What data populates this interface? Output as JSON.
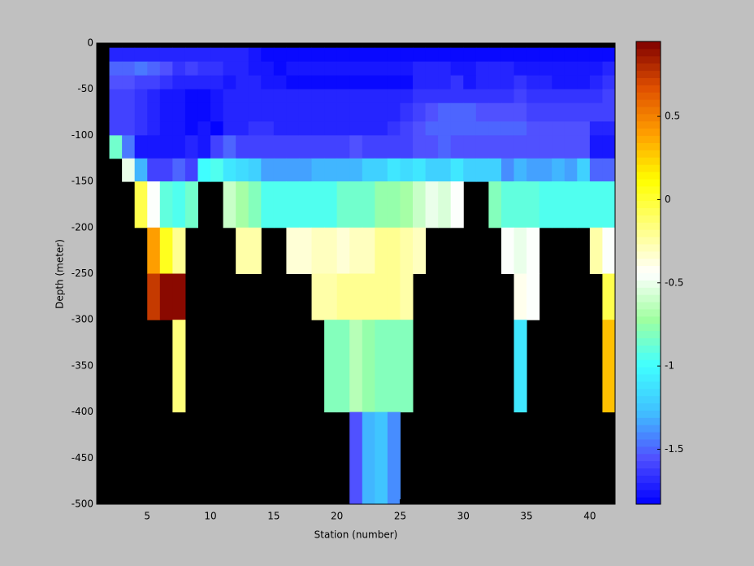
{
  "chart_data": {
    "type": "heatmap",
    "xlabel": "Station (number)",
    "ylabel": "Depth (meter)",
    "xlim": [
      1,
      42
    ],
    "ylim": [
      -500,
      0
    ],
    "xticks": [
      5,
      10,
      15,
      20,
      25,
      30,
      35,
      40
    ],
    "yticks": [
      0,
      -50,
      -100,
      -150,
      -200,
      -250,
      -300,
      -350,
      -400,
      -450,
      -500
    ],
    "xbins": [
      2,
      3,
      4,
      5,
      6,
      7,
      8,
      9,
      10,
      11,
      12,
      13,
      14,
      15,
      16,
      17,
      18,
      19,
      20,
      21,
      22,
      23,
      24,
      25,
      26,
      27,
      28,
      29,
      30,
      31,
      32,
      33,
      34,
      35,
      36,
      37,
      38,
      39,
      40,
      41,
      42
    ],
    "ybins": [
      -5,
      -20,
      -35,
      -50,
      -65,
      -85,
      -100,
      -125,
      -150,
      -200,
      -250,
      -300,
      -400,
      -500
    ],
    "values": [
      [
        -1.7,
        -1.7,
        -1.7,
        -1.7,
        -1.7,
        -1.7,
        -1.7,
        -1.7,
        -1.7,
        -1.7,
        -1.7,
        -1.75,
        -1.8,
        -1.8,
        -1.8,
        -1.8,
        -1.8,
        -1.8,
        -1.8,
        -1.8,
        -1.8,
        -1.8,
        -1.8,
        -1.8,
        -1.8,
        -1.8,
        -1.8,
        -1.8,
        -1.8,
        -1.8,
        -1.8,
        -1.8,
        -1.8,
        -1.8,
        -1.8,
        -1.8,
        -1.8,
        -1.8,
        -1.8,
        -1.8
      ],
      [
        -1.5,
        -1.5,
        -1.45,
        -1.5,
        -1.55,
        -1.65,
        -1.6,
        -1.65,
        -1.65,
        -1.7,
        -1.7,
        -1.75,
        -1.75,
        -1.8,
        -1.75,
        -1.75,
        -1.75,
        -1.75,
        -1.75,
        -1.75,
        -1.75,
        -1.75,
        -1.75,
        -1.75,
        -1.7,
        -1.7,
        -1.7,
        -1.75,
        -1.75,
        -1.7,
        -1.7,
        -1.7,
        -1.75,
        -1.75,
        -1.75,
        -1.75,
        -1.75,
        -1.75,
        -1.75,
        -1.7
      ],
      [
        -1.55,
        -1.55,
        -1.6,
        -1.6,
        -1.65,
        -1.7,
        -1.7,
        -1.7,
        -1.7,
        -1.75,
        -1.7,
        -1.7,
        -1.75,
        -1.75,
        -1.8,
        -1.8,
        -1.8,
        -1.8,
        -1.8,
        -1.8,
        -1.8,
        -1.8,
        -1.8,
        -1.8,
        -1.7,
        -1.7,
        -1.7,
        -1.65,
        -1.75,
        -1.7,
        -1.7,
        -1.7,
        -1.65,
        -1.7,
        -1.7,
        -1.75,
        -1.75,
        -1.75,
        -1.7,
        -1.65
      ],
      [
        -1.6,
        -1.6,
        -1.65,
        -1.7,
        -1.75,
        -1.75,
        -1.8,
        -1.8,
        -1.75,
        -1.7,
        -1.7,
        -1.7,
        -1.7,
        -1.7,
        -1.7,
        -1.7,
        -1.7,
        -1.7,
        -1.7,
        -1.7,
        -1.7,
        -1.7,
        -1.7,
        -1.7,
        -1.65,
        -1.65,
        -1.65,
        -1.65,
        -1.65,
        -1.65,
        -1.65,
        -1.65,
        -1.6,
        -1.65,
        -1.65,
        -1.65,
        -1.65,
        -1.65,
        -1.65,
        -1.6
      ],
      [
        -1.6,
        -1.6,
        -1.65,
        -1.7,
        -1.75,
        -1.75,
        -1.8,
        -1.8,
        -1.75,
        -1.7,
        -1.7,
        -1.7,
        -1.7,
        -1.7,
        -1.7,
        -1.7,
        -1.7,
        -1.7,
        -1.7,
        -1.7,
        -1.7,
        -1.7,
        -1.7,
        -1.65,
        -1.6,
        -1.55,
        -1.5,
        -1.5,
        -1.5,
        -1.55,
        -1.55,
        -1.55,
        -1.55,
        -1.6,
        -1.6,
        -1.6,
        -1.6,
        -1.6,
        -1.6,
        -1.6
      ],
      [
        -1.6,
        -1.6,
        -1.65,
        -1.7,
        -1.75,
        -1.75,
        -1.8,
        -1.75,
        -1.82,
        -1.7,
        -1.7,
        -1.65,
        -1.65,
        -1.7,
        -1.7,
        -1.7,
        -1.7,
        -1.7,
        -1.7,
        -1.7,
        -1.7,
        -1.7,
        -1.65,
        -1.6,
        -1.55,
        -1.5,
        -1.5,
        -1.5,
        -1.5,
        -1.5,
        -1.5,
        -1.5,
        -1.5,
        -1.55,
        -1.55,
        -1.55,
        -1.55,
        -1.55,
        -1.7,
        -1.7
      ],
      [
        -0.85,
        -1.45,
        -1.75,
        -1.75,
        -1.75,
        -1.75,
        -1.7,
        -1.75,
        -1.6,
        -1.5,
        -1.6,
        -1.6,
        -1.6,
        -1.6,
        -1.6,
        -1.6,
        -1.6,
        -1.6,
        -1.6,
        -1.55,
        -1.6,
        -1.6,
        -1.6,
        -1.6,
        -1.55,
        -1.55,
        -1.5,
        -1.55,
        -1.55,
        -1.55,
        -1.55,
        -1.55,
        -1.55,
        -1.55,
        -1.55,
        -1.55,
        -1.55,
        -1.55,
        -1.75,
        -1.75
      ],
      [
        null,
        -0.5,
        -1.3,
        -1.6,
        -1.6,
        -1.5,
        -1.6,
        -1.0,
        -0.95,
        -1.1,
        -1.15,
        -1.2,
        -1.35,
        -1.35,
        -1.35,
        -1.35,
        -1.3,
        -1.3,
        -1.3,
        -1.3,
        -1.2,
        -1.2,
        -1.1,
        -1.15,
        -1.1,
        -1.2,
        -1.2,
        -1.1,
        -1.2,
        -1.2,
        -1.2,
        -1.4,
        -1.3,
        -1.35,
        -1.35,
        -1.3,
        -1.35,
        -1.2,
        -1.5,
        -1.5
      ],
      [
        null,
        null,
        -0.05,
        -0.45,
        -0.9,
        -0.95,
        -0.85,
        null,
        null,
        -0.6,
        -0.7,
        -0.8,
        -0.95,
        -0.95,
        -0.95,
        -0.95,
        -0.95,
        -0.95,
        -0.85,
        -0.85,
        -0.85,
        -0.75,
        -0.75,
        -0.7,
        -0.6,
        -0.5,
        -0.55,
        -0.45,
        null,
        null,
        -0.8,
        -0.9,
        -0.9,
        -0.9,
        -0.95,
        -0.95,
        -0.95,
        -0.95,
        -0.95,
        -0.95
      ],
      [
        null,
        null,
        null,
        0.4,
        0.05,
        -0.2,
        null,
        null,
        null,
        null,
        -0.25,
        -0.25,
        null,
        null,
        -0.35,
        -0.35,
        -0.3,
        -0.3,
        -0.35,
        -0.3,
        -0.3,
        -0.2,
        -0.2,
        -0.25,
        -0.3,
        null,
        null,
        null,
        null,
        null,
        null,
        -0.45,
        -0.5,
        -0.45,
        null,
        null,
        null,
        null,
        -0.25,
        -0.45
      ],
      [
        null,
        null,
        null,
        0.75,
        0.92,
        0.92,
        null,
        null,
        null,
        null,
        null,
        null,
        null,
        null,
        null,
        null,
        -0.25,
        -0.25,
        -0.2,
        -0.2,
        -0.2,
        -0.2,
        -0.2,
        -0.25,
        null,
        null,
        null,
        null,
        null,
        null,
        null,
        null,
        -0.4,
        -0.45,
        null,
        null,
        null,
        null,
        null,
        -0.05
      ],
      [
        null,
        null,
        null,
        null,
        null,
        -0.15,
        null,
        null,
        null,
        null,
        null,
        null,
        null,
        null,
        null,
        null,
        null,
        -0.8,
        -0.8,
        -0.65,
        -0.75,
        -0.8,
        -0.8,
        -0.8,
        null,
        null,
        null,
        null,
        null,
        null,
        null,
        null,
        -1.1,
        null,
        null,
        null,
        null,
        null,
        null,
        0.3
      ],
      [
        null,
        null,
        null,
        null,
        null,
        null,
        null,
        null,
        null,
        null,
        null,
        null,
        null,
        null,
        null,
        null,
        null,
        null,
        null,
        -1.55,
        -1.3,
        -1.25,
        -1.4,
        null,
        null,
        null,
        null,
        null,
        null,
        null,
        null,
        null,
        null,
        null,
        null,
        null,
        null,
        null,
        null,
        null
      ]
    ],
    "clim": [
      -1.83,
      0.95
    ],
    "cticks": [
      -1.5,
      -1,
      -0.5,
      0,
      0.5
    ],
    "colormap": [
      "#0000ff",
      "#5050ff",
      "#40c0ff",
      "#40ffff",
      "#a0ffa0",
      "#ffffff",
      "#ffff80",
      "#ffff00",
      "#ffa000",
      "#e05000",
      "#800000"
    ],
    "nan_color": "#000000"
  }
}
